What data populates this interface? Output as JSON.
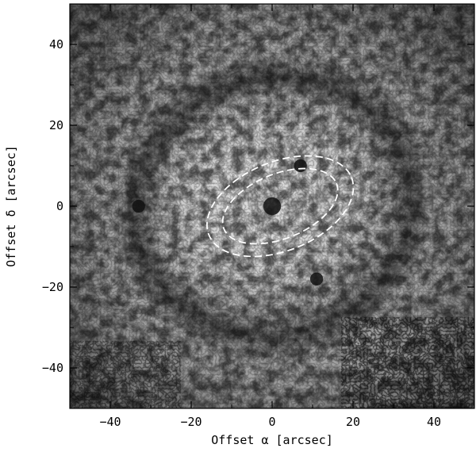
{
  "chart_data": {
    "type": "heatmap",
    "title": "",
    "xlabel": "Offset α [arcsec]",
    "ylabel": "Offset δ [arcsec]",
    "xlim": [
      -50,
      50
    ],
    "ylim": [
      -50,
      50
    ],
    "x_ticks": [
      -40,
      -20,
      0,
      20,
      40
    ],
    "y_ticks": [
      -40,
      -20,
      0,
      20,
      40
    ],
    "x_tick_labels": [
      "−40",
      "−20",
      "0",
      "20",
      "40"
    ],
    "y_tick_labels": [
      "−40",
      "−20",
      "0",
      "20",
      "40"
    ],
    "colormap": "grayscale",
    "grid": false,
    "annotations": [
      {
        "type": "ellipse",
        "style": "dashed",
        "color": "#ffffff",
        "center": [
          2,
          0
        ],
        "semi_major": 15,
        "semi_minor": 8,
        "angle_deg": 22
      },
      {
        "type": "ellipse",
        "style": "dashed",
        "color": "#ffffff",
        "center": [
          2,
          0
        ],
        "semi_major": 19,
        "semi_minor": 11,
        "angle_deg": 22
      }
    ],
    "features": [
      {
        "name": "central dark core",
        "x": 0,
        "y": 0
      },
      {
        "name": "dark clump",
        "x": 7,
        "y": 10
      },
      {
        "name": "dark spot",
        "x": -33,
        "y": 0
      },
      {
        "name": "dark spot",
        "x": 11,
        "y": -18
      }
    ]
  }
}
